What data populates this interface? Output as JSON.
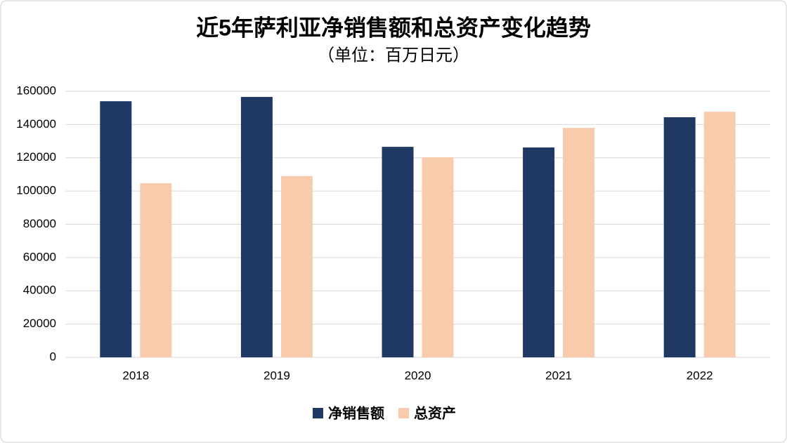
{
  "chart_data": {
    "type": "bar",
    "title": "近5年萨利亚净销售额和总资产变化趋势",
    "subtitle": "（单位：百万日元）",
    "categories": [
      "2018",
      "2019",
      "2020",
      "2021",
      "2022"
    ],
    "series": [
      {
        "name": "净销售额",
        "color": "#203864",
        "values": [
          154000,
          156600,
          126600,
          126200,
          144400
        ]
      },
      {
        "name": "总资产",
        "color": "#f8cbad",
        "values": [
          104700,
          109000,
          120300,
          138000,
          147700
        ]
      }
    ],
    "ylim": [
      0,
      160000
    ],
    "yticks": [
      0,
      20000,
      40000,
      60000,
      80000,
      100000,
      120000,
      140000,
      160000
    ],
    "grid": true,
    "legend": "bottom"
  }
}
